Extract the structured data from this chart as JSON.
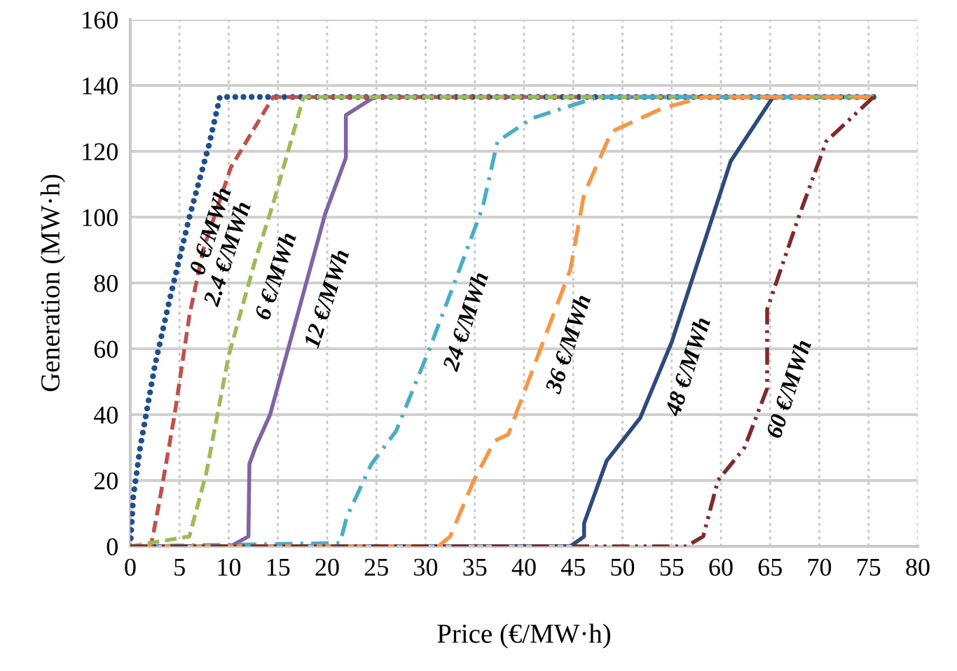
{
  "chart_data": {
    "type": "line",
    "xlabel": "Price (€/MW·h)",
    "ylabel": "Generation (MW·h)",
    "xlim": [
      0,
      80
    ],
    "xticks": [
      0,
      5,
      10,
      15,
      20,
      25,
      30,
      35,
      40,
      45,
      50,
      55,
      60,
      65,
      70,
      75,
      80
    ],
    "ylim": [
      0,
      160
    ],
    "yticks": [
      0,
      20,
      40,
      60,
      80,
      100,
      120,
      140,
      160
    ],
    "grid": true,
    "marker": "none",
    "series": [
      {
        "name": "0 €/MWh",
        "color": "#1f4e8c",
        "line_style": "dotted",
        "x": [
          0,
          0.3,
          1,
          2.5,
          4,
          6,
          8,
          9.1,
          75.5
        ],
        "values": [
          0,
          15,
          30,
          55,
          75,
          100,
          122,
          136.5,
          136.5
        ]
      },
      {
        "name": "2.4 €/MWh",
        "color": "#c0504d",
        "line_style": "dashed",
        "x": [
          0,
          2.1,
          3.1,
          4.5,
          6,
          7.4,
          10.2,
          14.5,
          75.5
        ],
        "values": [
          0,
          0,
          16,
          40,
          70,
          90,
          115,
          136.5,
          136.5
        ]
      },
      {
        "name": "6 €/MWh",
        "color": "#9bbb59",
        "line_style": "dashed",
        "x": [
          0,
          6,
          7.7,
          10,
          12.7,
          14.5,
          17.6,
          75.5
        ],
        "values": [
          0,
          3,
          22,
          58,
          87,
          104,
          136.5,
          136.5
        ]
      },
      {
        "name": "12 €/MWh",
        "color": "#8064a2",
        "line_style": "solid",
        "x": [
          0,
          10.2,
          12,
          12.1,
          12.7,
          14.2,
          19.8,
          21.9,
          21.9,
          24.8,
          75.5
        ],
        "values": [
          0,
          0,
          3,
          25,
          30,
          40,
          101,
          118,
          131,
          136.5,
          136.5
        ]
      },
      {
        "name": "24 €/MWh",
        "color": "#4bacc6",
        "line_style": "dashdot",
        "x": [
          0,
          21.3,
          22,
          24.5,
          27,
          30.4,
          33.3,
          35.8,
          37.3,
          40.8,
          47.5,
          75.5
        ],
        "values": [
          0,
          1,
          9,
          25,
          35,
          60,
          83,
          103,
          123,
          130,
          136.5,
          136.5
        ]
      },
      {
        "name": "36 €/MWh",
        "color": "#f79646",
        "line_style": "longdash",
        "x": [
          0,
          31.3,
          32.5,
          34.9,
          37,
          38.4,
          41.8,
          44.7,
          46.1,
          48.9,
          54,
          58.3,
          75.5
        ],
        "values": [
          0,
          0,
          3,
          20,
          32,
          34,
          61,
          84,
          107,
          126,
          133,
          136.5,
          136.5
        ]
      },
      {
        "name": "48 €/MWh",
        "color": "#2e4a7d",
        "line_style": "solid",
        "x": [
          0,
          44.7,
          46.1,
          46.1,
          48.4,
          51.8,
          55,
          61,
          65.3,
          75.5
        ],
        "values": [
          0,
          0,
          3,
          7,
          26,
          39,
          62,
          117,
          136.5,
          136.5
        ]
      },
      {
        "name": "60 €/MWh",
        "color": "#7f2b2b",
        "line_style": "dashdotdot",
        "x": [
          0,
          56.5,
          58.2,
          59.7,
          62.4,
          64.7,
          64.7,
          67.9,
          70.7,
          75.5
        ],
        "values": [
          0,
          0,
          3,
          20,
          30,
          48,
          72,
          100,
          123,
          136.5
        ]
      }
    ]
  }
}
